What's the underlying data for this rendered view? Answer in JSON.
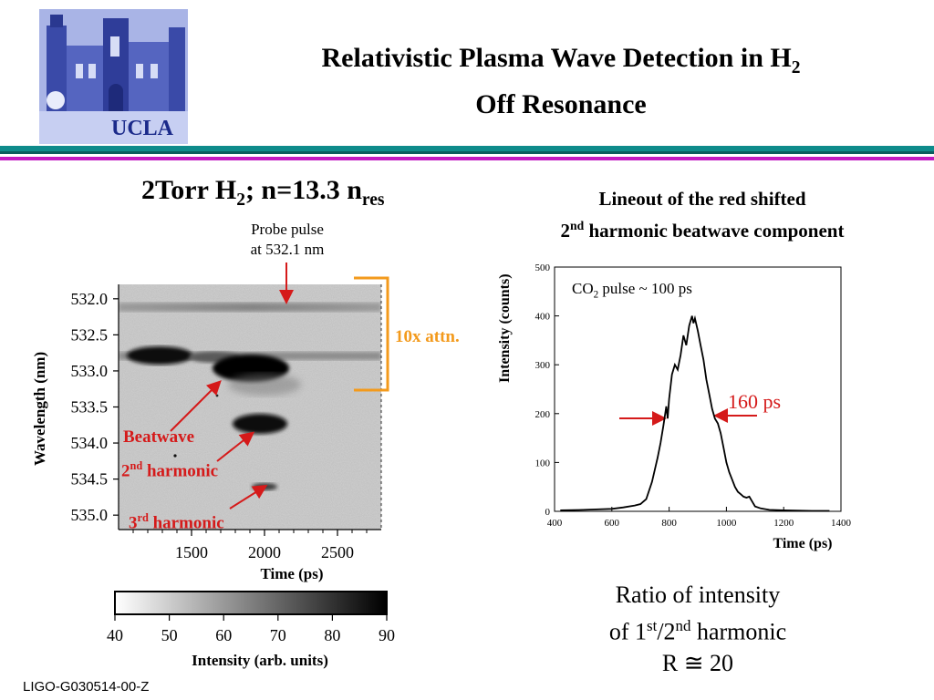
{
  "logo": {
    "text": "UCLA",
    "accent": "#1b2a8a",
    "bg": "#a9b4e6"
  },
  "title": {
    "line1": "Relativistic Plasma Wave Detection in H",
    "line1_sub": "2",
    "line2": "Off Resonance"
  },
  "left_panel": {
    "heading_main": "2Torr H",
    "heading_sub1": "2",
    "heading_mid": "; n=13.3 n",
    "heading_sub2": "res",
    "probe_line1": "Probe pulse",
    "probe_line2": "at 532.1 nm",
    "ylabel": "Wavelength (nm)",
    "xlabel": "Time (ps)",
    "y_ticks": [
      "532.0",
      "532.5",
      "533.0",
      "533.5",
      "534.0",
      "534.5",
      "535.0"
    ],
    "x_ticks": [
      "1500",
      "2000",
      "2500"
    ],
    "attn_label": "10x attn.",
    "label_beatwave": "Beatwave",
    "label_2nd_num": "2",
    "label_2nd_sup": "nd",
    "label_2nd_rest": " harmonic",
    "label_3rd_num": "3",
    "label_3rd_sup": "rd",
    "label_3rd_rest": " harmonic"
  },
  "colorbar": {
    "ticks": [
      "40",
      "50",
      "60",
      "70",
      "80",
      "90"
    ],
    "label": "Intensity (arb. units)"
  },
  "right_panel": {
    "title_line1": "Lineout of the red shifted",
    "title_line2_num": "2",
    "title_line2_sup": "nd",
    "title_line2_rest": " harmonic beatwave component",
    "annotation_fwhm": "160 ps",
    "annotation_co2_main": "CO",
    "annotation_co2_sub": "2",
    "annotation_co2_rest": " pulse ~ 100 ps"
  },
  "ratio": {
    "line1": "Ratio of intensity",
    "line2_a": "of 1",
    "line2_sup1": "st",
    "line2_b": "/2",
    "line2_sup2": "nd",
    "line2_c": " harmonic",
    "line3": "R ≅ 20"
  },
  "footer": "LIGO-G030514-00-Z",
  "colors": {
    "teal_rule": "#0e8b8b",
    "magenta_rule": "#c21ac2",
    "red": "#d51a1a",
    "orange": "#f39a1c"
  },
  "chart_data": [
    {
      "type": "heatmap",
      "xlabel": "Time (ps)",
      "ylabel": "Wavelength (nm)",
      "xlim": [
        1000,
        2800
      ],
      "ylim": [
        535.2,
        531.8
      ],
      "x_ticks": [
        1500,
        2000,
        2500
      ],
      "y_ticks": [
        532.0,
        532.5,
        533.0,
        533.5,
        534.0,
        534.5,
        535.0
      ],
      "colorbar": {
        "range": [
          40,
          90
        ],
        "ticks": [
          40,
          50,
          60,
          70,
          80,
          90
        ],
        "label": "Intensity (arb. units)"
      }
    },
    {
      "type": "line",
      "title": "Lineout of the red shifted 2nd harmonic beatwave component",
      "xlabel": "Time (ps)",
      "ylabel": "Intensity (counts)",
      "xlim": [
        400,
        1400
      ],
      "ylim": [
        0,
        500
      ],
      "x_ticks": [
        400,
        600,
        800,
        1000,
        1200,
        1400
      ],
      "y_ticks": [
        0,
        100,
        200,
        300,
        400,
        500
      ],
      "grid": false,
      "series": [
        {
          "x": [
            420,
            500,
            600,
            640,
            680,
            700,
            720,
            740,
            760,
            770,
            780,
            790,
            795,
            800,
            810,
            820,
            830,
            840,
            850,
            860,
            870,
            880,
            885,
            890,
            900,
            910,
            920,
            930,
            940,
            950,
            960,
            970,
            980,
            990,
            1000,
            1010,
            1020,
            1030,
            1040,
            1050,
            1060,
            1070,
            1080,
            1090,
            1100,
            1120,
            1150,
            1200,
            1300,
            1360
          ],
          "y": [
            2,
            3,
            5,
            8,
            12,
            15,
            25,
            60,
            110,
            140,
            175,
            215,
            190,
            230,
            280,
            300,
            290,
            320,
            360,
            340,
            380,
            400,
            385,
            395,
            370,
            340,
            310,
            270,
            240,
            210,
            190,
            180,
            160,
            130,
            100,
            80,
            65,
            50,
            40,
            35,
            30,
            28,
            30,
            20,
            10,
            6,
            3,
            2,
            1,
            1
          ]
        }
      ]
    }
  ]
}
